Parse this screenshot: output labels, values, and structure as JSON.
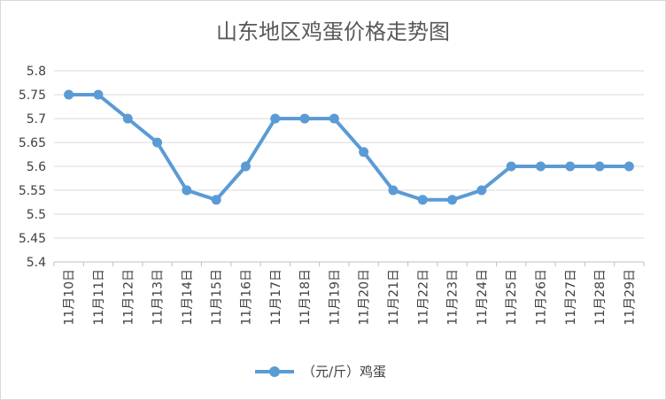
{
  "chart_data": {
    "type": "line",
    "title": "山东地区鸡蛋价格走势图",
    "x": [
      "11月10日",
      "11月11日",
      "11月12日",
      "11月13日",
      "11月14日",
      "11月15日",
      "11月16日",
      "11月17日",
      "11月18日",
      "11月19日",
      "11月20日",
      "11月21日",
      "11月22日",
      "11月23日",
      "11月24日",
      "11月25日",
      "11月26日",
      "11月27日",
      "11月28日",
      "11月29日"
    ],
    "series": [
      {
        "name": "（元/斤）鸡蛋",
        "color": "#5b9bd5",
        "values": [
          5.75,
          5.75,
          5.7,
          5.65,
          5.55,
          5.53,
          5.6,
          5.7,
          5.7,
          5.7,
          5.63,
          5.55,
          5.53,
          5.53,
          5.55,
          5.6,
          5.6,
          5.6,
          5.6,
          5.6
        ]
      }
    ],
    "ylim": [
      5.4,
      5.8
    ],
    "yticks": [
      "5.4",
      "5.45",
      "5.5",
      "5.55",
      "5.6",
      "5.65",
      "5.7",
      "5.75",
      "5.8"
    ],
    "grid": true,
    "legend": "bottom"
  }
}
